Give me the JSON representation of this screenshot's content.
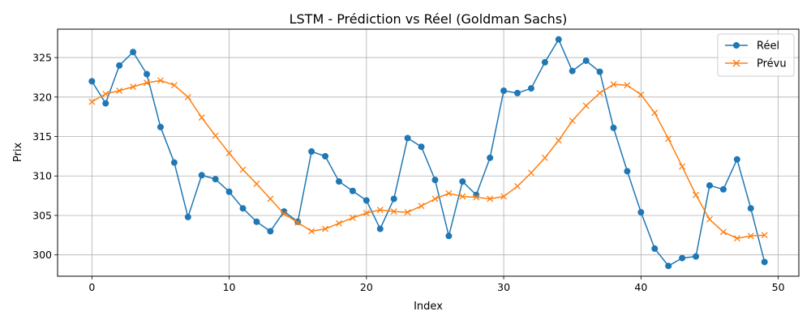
{
  "chart_data": {
    "type": "line",
    "title": "LSTM - Prédiction vs Réel (Goldman Sachs)",
    "xlabel": "Index",
    "ylabel": "Prix",
    "xlim": [
      -2.5,
      51.5
    ],
    "ylim": [
      297.3,
      328.6
    ],
    "xticks": [
      0,
      10,
      20,
      30,
      40,
      50
    ],
    "yticks": [
      300,
      305,
      310,
      315,
      320,
      325
    ],
    "grid": true,
    "legend_position": "top-right",
    "series": [
      {
        "name": "Réel",
        "color": "#1f77b4",
        "marker": "circle",
        "values": [
          322.0,
          319.2,
          324.0,
          325.7,
          322.9,
          316.2,
          311.7,
          304.8,
          310.1,
          309.6,
          308.0,
          305.9,
          304.2,
          303.0,
          305.5,
          304.2,
          313.1,
          312.5,
          309.3,
          308.1,
          306.9,
          303.3,
          307.1,
          314.8,
          313.7,
          309.5,
          302.4,
          309.3,
          307.6,
          312.3,
          320.8,
          320.5,
          321.1,
          324.4,
          327.3,
          323.3,
          324.6,
          323.2,
          316.1,
          310.6,
          305.4,
          300.8,
          298.6,
          299.6,
          299.8,
          308.8,
          308.3,
          312.1,
          305.9,
          299.1
        ]
      },
      {
        "name": "Prévu",
        "color": "#ff7f0e",
        "marker": "x",
        "values": [
          319.4,
          320.4,
          320.8,
          321.3,
          321.8,
          322.1,
          321.5,
          320.0,
          317.4,
          315.1,
          312.9,
          310.8,
          309.0,
          307.1,
          305.2,
          304.1,
          303.0,
          303.3,
          304.0,
          304.7,
          305.3,
          305.7,
          305.5,
          305.4,
          306.2,
          307.1,
          307.8,
          307.4,
          307.3,
          307.1,
          307.4,
          308.7,
          310.4,
          312.3,
          314.5,
          317.0,
          318.9,
          320.5,
          321.6,
          321.5,
          320.3,
          318.0,
          314.7,
          311.2,
          307.6,
          304.5,
          302.9,
          302.1,
          302.4,
          302.5
        ]
      }
    ]
  }
}
